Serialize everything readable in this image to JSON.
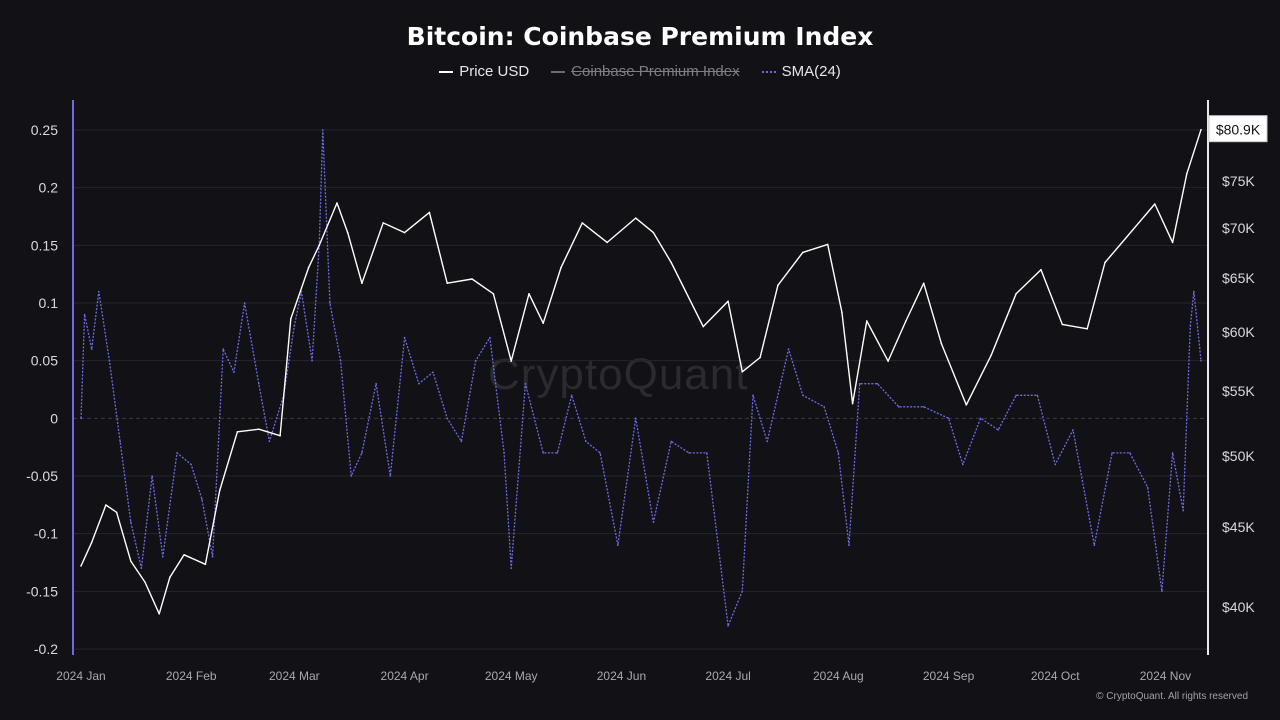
{
  "chart_data": {
    "type": "line",
    "title": "Bitcoin: Coinbase Premium Index",
    "legend": [
      {
        "label": "Price USD",
        "color": "#ffffff",
        "enabled": true
      },
      {
        "label": "Coinbase Premium Index",
        "color": "#6a6a72",
        "enabled": false
      },
      {
        "label": "SMA(24)",
        "color": "#6b6be6",
        "enabled": true
      }
    ],
    "legend_position": "top-center",
    "left_axis": {
      "ticks": [
        "0.25",
        "0.2",
        "0.15",
        "0.1",
        "0.05",
        "0",
        "-0.05",
        "-0.1",
        "-0.15",
        "-0.2"
      ],
      "ylim": [
        -0.2,
        0.25
      ]
    },
    "right_axis": {
      "ticks": [
        "$75K",
        "$70K",
        "$65K",
        "$60K",
        "$55K",
        "$50K",
        "$45K",
        "$40K"
      ],
      "scale": "log",
      "ylim": [
        38000,
        82000
      ]
    },
    "last_price_label": "$80.9K",
    "x_ticks": [
      "2024 Jan",
      "2024 Feb",
      "2024 Mar",
      "2024 Apr",
      "2024 May",
      "2024 Jun",
      "2024 Jul",
      "2024 Aug",
      "2024 Sep",
      "2024 Oct",
      "2024 Nov"
    ],
    "grid": true,
    "series": [
      {
        "name": "Price USD",
        "axis": "right",
        "points": [
          [
            "2024-01-01",
            42500
          ],
          [
            "2024-01-04",
            44000
          ],
          [
            "2024-01-08",
            46500
          ],
          [
            "2024-01-11",
            46000
          ],
          [
            "2024-01-15",
            42800
          ],
          [
            "2024-01-19",
            41500
          ],
          [
            "2024-01-23",
            39600
          ],
          [
            "2024-01-26",
            41800
          ],
          [
            "2024-01-30",
            43200
          ],
          [
            "2024-02-05",
            42600
          ],
          [
            "2024-02-09",
            47500
          ],
          [
            "2024-02-14",
            51800
          ],
          [
            "2024-02-20",
            52000
          ],
          [
            "2024-02-26",
            51500
          ],
          [
            "2024-02-29",
            61200
          ],
          [
            "2024-03-05",
            66000
          ],
          [
            "2024-03-08",
            68200
          ],
          [
            "2024-03-13",
            72600
          ],
          [
            "2024-03-16",
            69500
          ],
          [
            "2024-03-20",
            64500
          ],
          [
            "2024-03-26",
            70500
          ],
          [
            "2024-04-01",
            69500
          ],
          [
            "2024-04-08",
            71600
          ],
          [
            "2024-04-13",
            64500
          ],
          [
            "2024-04-20",
            64900
          ],
          [
            "2024-04-26",
            63500
          ],
          [
            "2024-05-01",
            57500
          ],
          [
            "2024-05-06",
            63500
          ],
          [
            "2024-05-10",
            60800
          ],
          [
            "2024-05-15",
            66000
          ],
          [
            "2024-05-21",
            70500
          ],
          [
            "2024-05-28",
            68500
          ],
          [
            "2024-06-05",
            71000
          ],
          [
            "2024-06-10",
            69500
          ],
          [
            "2024-06-15",
            66500
          ],
          [
            "2024-06-24",
            60500
          ],
          [
            "2024-07-01",
            62800
          ],
          [
            "2024-07-05",
            56600
          ],
          [
            "2024-07-10",
            57800
          ],
          [
            "2024-07-15",
            64300
          ],
          [
            "2024-07-22",
            67500
          ],
          [
            "2024-07-29",
            68300
          ],
          [
            "2024-08-02",
            61800
          ],
          [
            "2024-08-05",
            54000
          ],
          [
            "2024-08-09",
            61000
          ],
          [
            "2024-08-15",
            57500
          ],
          [
            "2024-08-20",
            61000
          ],
          [
            "2024-08-25",
            64500
          ],
          [
            "2024-08-30",
            59000
          ],
          [
            "2024-09-06",
            53900
          ],
          [
            "2024-09-13",
            58000
          ],
          [
            "2024-09-20",
            63500
          ],
          [
            "2024-09-27",
            65800
          ],
          [
            "2024-10-03",
            60700
          ],
          [
            "2024-10-10",
            60300
          ],
          [
            "2024-10-15",
            66500
          ],
          [
            "2024-10-21",
            69000
          ],
          [
            "2024-10-29",
            72500
          ],
          [
            "2024-11-03",
            68500
          ],
          [
            "2024-11-07",
            75800
          ],
          [
            "2024-11-11",
            80900
          ]
        ]
      },
      {
        "name": "SMA(24)",
        "axis": "left",
        "points": [
          [
            "2024-01-01",
            0.0
          ],
          [
            "2024-01-02",
            0.09
          ],
          [
            "2024-01-04",
            0.06
          ],
          [
            "2024-01-06",
            0.11
          ],
          [
            "2024-01-09",
            0.05
          ],
          [
            "2024-01-12",
            -0.02
          ],
          [
            "2024-01-15",
            -0.09
          ],
          [
            "2024-01-18",
            -0.13
          ],
          [
            "2024-01-21",
            -0.05
          ],
          [
            "2024-01-24",
            -0.12
          ],
          [
            "2024-01-28",
            -0.03
          ],
          [
            "2024-02-01",
            -0.04
          ],
          [
            "2024-02-04",
            -0.07
          ],
          [
            "2024-02-07",
            -0.12
          ],
          [
            "2024-02-10",
            0.06
          ],
          [
            "2024-02-13",
            0.04
          ],
          [
            "2024-02-16",
            0.1
          ],
          [
            "2024-02-20",
            0.03
          ],
          [
            "2024-02-23",
            -0.02
          ],
          [
            "2024-02-27",
            0.02
          ],
          [
            "2024-03-01",
            0.08
          ],
          [
            "2024-03-03",
            0.11
          ],
          [
            "2024-03-06",
            0.05
          ],
          [
            "2024-03-08",
            0.15
          ],
          [
            "2024-03-09",
            0.25
          ],
          [
            "2024-03-11",
            0.1
          ],
          [
            "2024-03-14",
            0.05
          ],
          [
            "2024-03-17",
            -0.05
          ],
          [
            "2024-03-20",
            -0.03
          ],
          [
            "2024-03-24",
            0.03
          ],
          [
            "2024-03-28",
            -0.05
          ],
          [
            "2024-04-01",
            0.07
          ],
          [
            "2024-04-05",
            0.03
          ],
          [
            "2024-04-09",
            0.04
          ],
          [
            "2024-04-13",
            0.0
          ],
          [
            "2024-04-17",
            -0.02
          ],
          [
            "2024-04-21",
            0.05
          ],
          [
            "2024-04-25",
            0.07
          ],
          [
            "2024-04-29",
            -0.03
          ],
          [
            "2024-05-01",
            -0.13
          ],
          [
            "2024-05-05",
            0.03
          ],
          [
            "2024-05-10",
            -0.03
          ],
          [
            "2024-05-14",
            -0.03
          ],
          [
            "2024-05-18",
            0.02
          ],
          [
            "2024-05-22",
            -0.02
          ],
          [
            "2024-05-26",
            -0.03
          ],
          [
            "2024-05-31",
            -0.11
          ],
          [
            "2024-06-05",
            0.0
          ],
          [
            "2024-06-10",
            -0.09
          ],
          [
            "2024-06-15",
            -0.02
          ],
          [
            "2024-06-20",
            -0.03
          ],
          [
            "2024-06-25",
            -0.03
          ],
          [
            "2024-07-01",
            -0.18
          ],
          [
            "2024-07-05",
            -0.15
          ],
          [
            "2024-07-08",
            0.02
          ],
          [
            "2024-07-12",
            -0.02
          ],
          [
            "2024-07-18",
            0.06
          ],
          [
            "2024-07-22",
            0.02
          ],
          [
            "2024-07-28",
            0.01
          ],
          [
            "2024-08-01",
            -0.03
          ],
          [
            "2024-08-04",
            -0.11
          ],
          [
            "2024-08-07",
            0.03
          ],
          [
            "2024-08-12",
            0.03
          ],
          [
            "2024-08-18",
            0.01
          ],
          [
            "2024-08-25",
            0.01
          ],
          [
            "2024-09-01",
            0.0
          ],
          [
            "2024-09-05",
            -0.04
          ],
          [
            "2024-09-10",
            0.0
          ],
          [
            "2024-09-15",
            -0.01
          ],
          [
            "2024-09-20",
            0.02
          ],
          [
            "2024-09-26",
            0.02
          ],
          [
            "2024-10-01",
            -0.04
          ],
          [
            "2024-10-06",
            -0.01
          ],
          [
            "2024-10-12",
            -0.11
          ],
          [
            "2024-10-17",
            -0.03
          ],
          [
            "2024-10-22",
            -0.03
          ],
          [
            "2024-10-27",
            -0.06
          ],
          [
            "2024-10-31",
            -0.15
          ],
          [
            "2024-11-03",
            -0.03
          ],
          [
            "2024-11-06",
            -0.08
          ],
          [
            "2024-11-08",
            0.08
          ],
          [
            "2024-11-09",
            0.11
          ],
          [
            "2024-11-11",
            0.05
          ]
        ]
      }
    ]
  },
  "watermark": "CryptoQuant",
  "footer": "© CryptoQuant. All rights reserved"
}
